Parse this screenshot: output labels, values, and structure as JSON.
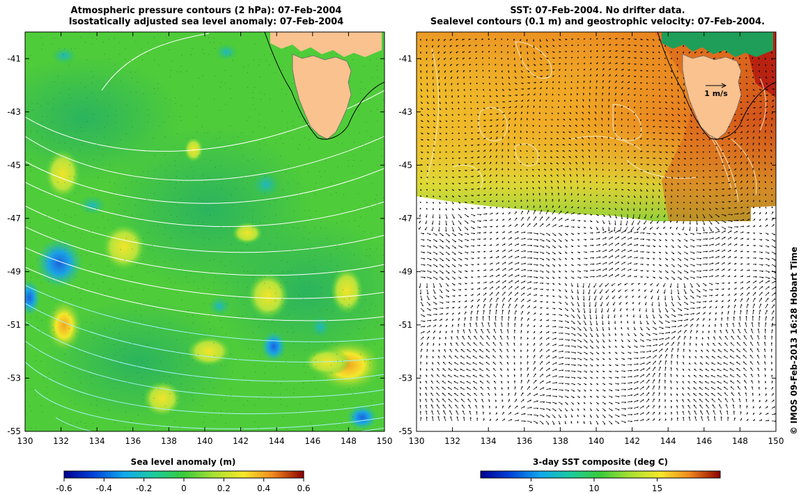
{
  "left_panel": {
    "title_line1": "Atmospheric pressure contours (2 hPa): 07-Feb-2004",
    "title_line2": "Isostatically adjusted sea level anomaly: 07-Feb-2004",
    "colorbar_label": "Sea level anomaly (m)",
    "colorbar_ticks": [
      "-0.6",
      "-0.4",
      "-0.2",
      "0",
      "0.2",
      "0.4",
      "0.6"
    ],
    "colorbar_range": [
      -0.6,
      0.6
    ]
  },
  "right_panel": {
    "title_line1": "SST: 07-Feb-2004. No drifter data.",
    "title_line2": "Sealevel contours (0.1 m) and geostrophic velocity: 07-Feb-2004.",
    "colorbar_label": "3-day SST composite (deg C)",
    "colorbar_ticks": [
      "5",
      "10",
      "15"
    ],
    "colorbar_range": [
      1,
      20
    ],
    "scale_arrow_label": "1 m/s"
  },
  "axes": {
    "lon_ticks": [
      "130",
      "132",
      "134",
      "136",
      "138",
      "140",
      "142",
      "144",
      "146",
      "148",
      "150"
    ],
    "lat_ticks": [
      "-41",
      "-43",
      "-45",
      "-47",
      "-49",
      "-51",
      "-53",
      "-55"
    ],
    "lon_range": [
      130,
      150
    ],
    "lat_range": [
      -55,
      -40
    ]
  },
  "credit": "© IMOS 09-Feb-2013 16:28 Hobart Time",
  "colors": {
    "land": "#f9c28f",
    "contour": "#ffffff",
    "coast_line": "#000000"
  }
}
